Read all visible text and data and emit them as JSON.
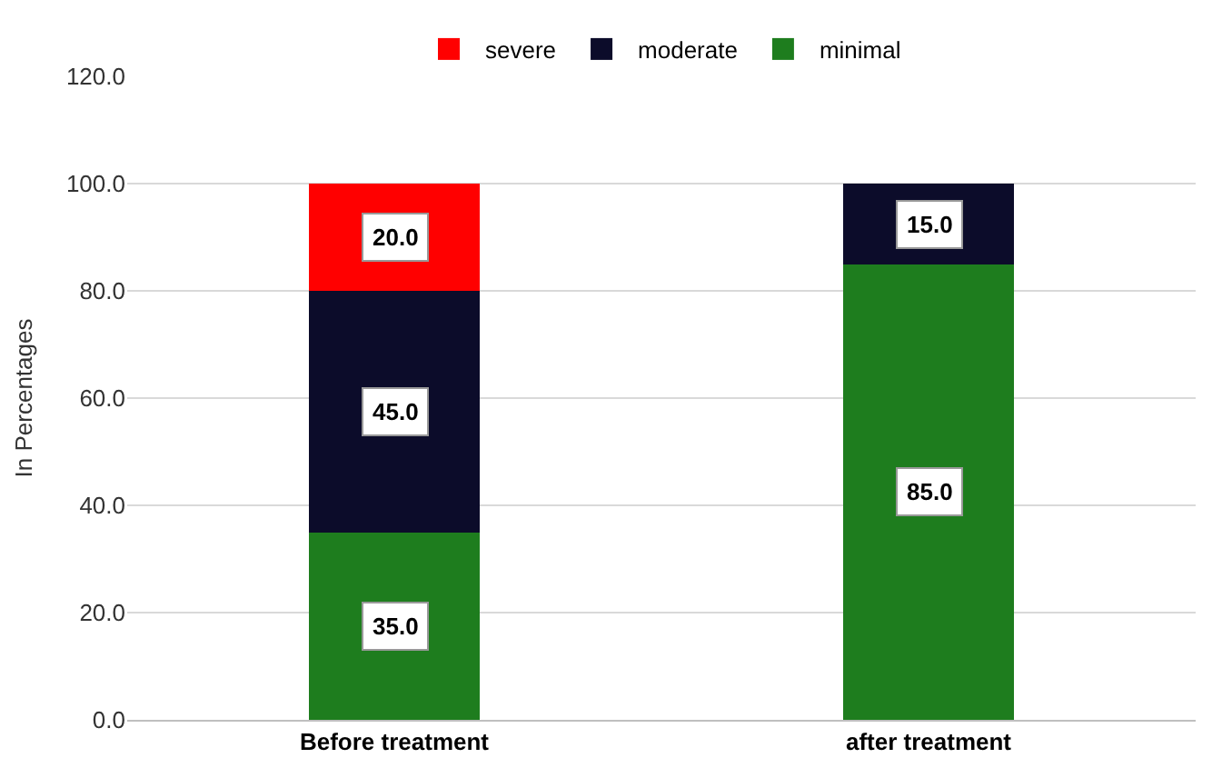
{
  "chart_data": {
    "type": "bar",
    "stacked": true,
    "ylabel": "In Percentages",
    "categories": [
      "Before treatment",
      "after treatment"
    ],
    "series": [
      {
        "name": "minimal",
        "color": "#1e7d1e",
        "values": [
          35,
          85
        ],
        "value_labels": [
          "35.0",
          "85.0"
        ]
      },
      {
        "name": "moderate",
        "color": "#0c0c2a",
        "values": [
          45,
          15
        ],
        "value_labels": [
          "45.0",
          "15.0"
        ]
      },
      {
        "name": "severe",
        "color": "#ff0000",
        "values": [
          20,
          null
        ],
        "value_labels": [
          "20.0",
          null
        ]
      }
    ],
    "ylim": [
      0,
      120
    ],
    "yticks": [
      {
        "value": 0,
        "label": "0.0"
      },
      {
        "value": 20,
        "label": "20.0"
      },
      {
        "value": 40,
        "label": "40.0"
      },
      {
        "value": 60,
        "label": "60.0"
      },
      {
        "value": 80,
        "label": "80.0"
      },
      {
        "value": 100,
        "label": "100.0"
      },
      {
        "value": 120,
        "label": "120.0"
      }
    ],
    "grid": "y",
    "legend": "top"
  }
}
